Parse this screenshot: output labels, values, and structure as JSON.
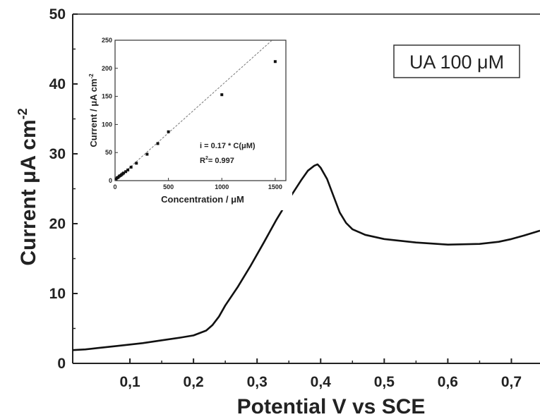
{
  "chart_data": [
    {
      "type": "line",
      "xlabel": "Potential    V vs SCE",
      "ylabel": "Current   μA cm",
      "ylabel_sup": "-2",
      "xlim": [
        0.01,
        0.745
      ],
      "ylim": [
        0,
        50
      ],
      "x_ticks": [
        "0,1",
        "0,2",
        "0,3",
        "0,4",
        "0,5",
        "0,6",
        "0,7"
      ],
      "y_ticks": [
        "0",
        "10",
        "20",
        "30",
        "40",
        "50"
      ],
      "annotation": "UA 100 μM",
      "series": [
        {
          "x": [
            0.01,
            0.03,
            0.05,
            0.08,
            0.1,
            0.12,
            0.15,
            0.18,
            0.2,
            0.22,
            0.23,
            0.24,
            0.25,
            0.27,
            0.29,
            0.31,
            0.33,
            0.35,
            0.37,
            0.38,
            0.39,
            0.395,
            0.4,
            0.41,
            0.42,
            0.43,
            0.44,
            0.45,
            0.47,
            0.5,
            0.55,
            0.6,
            0.65,
            0.68,
            0.7,
            0.72,
            0.745
          ],
          "y": [
            1.9,
            2.0,
            2.2,
            2.5,
            2.7,
            2.9,
            3.3,
            3.7,
            4.0,
            4.7,
            5.5,
            6.7,
            8.3,
            11.0,
            14.0,
            17.2,
            20.5,
            23.5,
            26.3,
            27.6,
            28.3,
            28.5,
            28.0,
            26.4,
            24.0,
            21.6,
            20.1,
            19.2,
            18.4,
            17.8,
            17.3,
            17.0,
            17.1,
            17.4,
            17.8,
            18.3,
            19.0
          ]
        }
      ]
    },
    {
      "type": "scatter",
      "xlabel": "Concentration   /   μM",
      "ylabel": "Current   /   μA cm",
      "ylabel_sup": "-2",
      "xlim": [
        0,
        1600
      ],
      "ylim": [
        0,
        250
      ],
      "x_ticks": [
        "0",
        "500",
        "1000",
        "1500"
      ],
      "y_ticks": [
        "0",
        "50",
        "100",
        "150",
        "200",
        "250"
      ],
      "fit_line": {
        "slope": 0.17,
        "intercept": 0,
        "x_range": [
          0,
          1470
        ]
      },
      "annotation_line1": "i = 0.17 * C(μM)",
      "annotation_line2_pre": "R",
      "annotation_line2_sup": "2",
      "annotation_line2_post": "= 0.997",
      "series": [
        {
          "x": [
            10,
            20,
            30,
            40,
            50,
            60,
            70,
            80,
            100,
            120,
            150,
            200,
            300,
            400,
            500,
            1000,
            1500
          ],
          "y": [
            3,
            5,
            6,
            8,
            9,
            10.5,
            12,
            13.5,
            16,
            19,
            24,
            31,
            47,
            66,
            87,
            153,
            212
          ]
        }
      ]
    }
  ]
}
